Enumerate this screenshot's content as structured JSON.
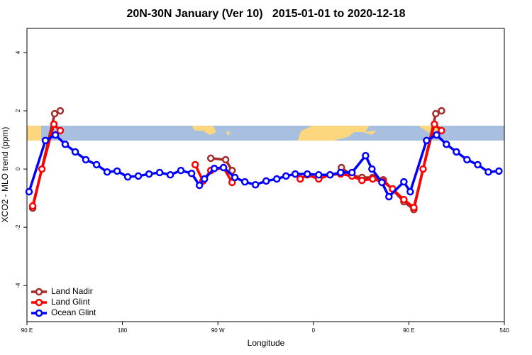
{
  "chart_data": {
    "type": "line",
    "title": "20N-30N January (Ver 10)   2015-01-01 to 2020-12-18",
    "x_label": "Longitude",
    "y_label": "XCO2 - MLO trend (ppm)",
    "xlim": [
      90,
      540
    ],
    "xticks": [
      {
        "value": 90,
        "label": "90 E"
      },
      180,
      {
        "value": 270,
        "label": "90 W"
      },
      {
        "value": 360,
        "label": "0"
      },
      {
        "value": 450,
        "label": "90 E"
      },
      540
    ],
    "ylim": [
      -5.24,
      4.83
    ],
    "yticks": [
      4,
      2,
      0,
      -2,
      -4
    ],
    "legend": "bottom-left",
    "series": [
      {
        "name": "Land Nadir",
        "color": "#a52a2a",
        "x": [
          95.4,
          116.1,
          121.4,
          null,
          263.3,
          277.3,
          283.4,
          null,
          386.4,
          396.4,
          405.8,
          415.9,
          425.9,
          445.3,
          454.7,
          475.4,
          480.8
        ],
        "values": [
          -1.34,
          1.9,
          2.0,
          null,
          0.37,
          0.32,
          -0.05,
          null,
          0.05,
          -0.22,
          -0.29,
          -0.29,
          -0.37,
          -1.12,
          -1.39,
          1.9,
          2.0
        ]
      },
      {
        "name": "Land Glint",
        "color": "#ff0000",
        "x": [
          95.4,
          104.1,
          115.4,
          121.4,
          null,
          248.6,
          255.9,
          263.3,
          275.3,
          283.4,
          null,
          347.6,
          354.3,
          365,
          375.7,
          385.7,
          396.4,
          405.8,
          415.9,
          425.9,
          434.6,
          445.3,
          454.7,
          463.4,
          474.1,
          480.8
        ],
        "values": [
          -1.27,
          0,
          1.54,
          1.32,
          null,
          0.15,
          -0.41,
          -0.05,
          0.05,
          -0.46,
          null,
          -0.34,
          -0.2,
          -0.34,
          -0.2,
          -0.17,
          -0.24,
          -0.39,
          -0.34,
          -0.44,
          -0.68,
          -1.05,
          -1.32,
          0,
          1.54,
          1.32
        ]
      },
      {
        "name": "Ocean Glint",
        "color": "#0000ff",
        "x": [
          92,
          107.4,
          116.8,
          126.1,
          135.5,
          145.5,
          155.6,
          165.6,
          175,
          185,
          195,
          205.1,
          215.1,
          225.1,
          235.1,
          245.2,
          252.6,
          257.3,
          266.6,
          275.3,
          286,
          295.4,
          305.4,
          315.5,
          325.5,
          334.2,
          342.9,
          354.3,
          365,
          375.7,
          385.7,
          396.4,
          409.2,
          415.2,
          424.6,
          431.2,
          445.3,
          451.3,
          466.7,
          476.1,
          485.4,
          494.8,
          504.8,
          514.9,
          524.9,
          534.9
        ],
        "values": [
          -0.78,
          0.98,
          1.17,
          0.85,
          0.59,
          0.32,
          0.15,
          -0.1,
          -0.07,
          -0.27,
          -0.24,
          -0.17,
          -0.12,
          -0.2,
          -0.05,
          -0.15,
          -0.56,
          -0.34,
          0.02,
          0.05,
          -0.29,
          -0.44,
          -0.54,
          -0.41,
          -0.34,
          -0.24,
          -0.17,
          -0.17,
          -0.2,
          -0.2,
          -0.12,
          -0.12,
          0.46,
          0,
          -0.46,
          -0.95,
          -0.44,
          -0.78,
          0.98,
          1.17,
          0.85,
          0.59,
          0.32,
          0.15,
          -0.1,
          -0.07
        ]
      }
    ]
  }
}
